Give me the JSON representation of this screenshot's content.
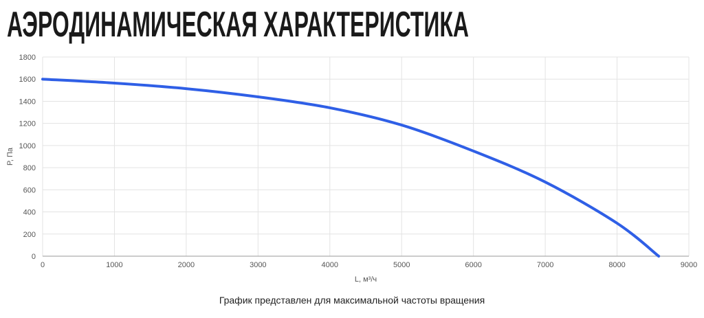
{
  "chart_data": {
    "type": "line",
    "title": "АЭРОДИНАМИЧЕСКАЯ ХАРАКТЕРИСТИКА",
    "x_label": "L, м³/ч",
    "y_label": "P, Па",
    "caption": "График представлен для максимальной частоты вращения",
    "x": [
      0,
      1000,
      2000,
      3000,
      4000,
      5000,
      6000,
      7000,
      8000,
      8580
    ],
    "series": [
      {
        "color": "#2f5fe6",
        "values": [
          1600,
          1564,
          1514,
          1440,
          1341,
          1185,
          950,
          670,
          298,
          0
        ]
      }
    ],
    "xlim": [
      0,
      9000
    ],
    "xticks": [
      0,
      1000,
      2000,
      3000,
      4000,
      5000,
      6000,
      7000,
      8000,
      9000
    ],
    "ylim": [
      0,
      1800
    ],
    "yticks": [
      0,
      200,
      400,
      600,
      800,
      1000,
      1200,
      1400,
      1600,
      1800
    ],
    "grid": true
  }
}
